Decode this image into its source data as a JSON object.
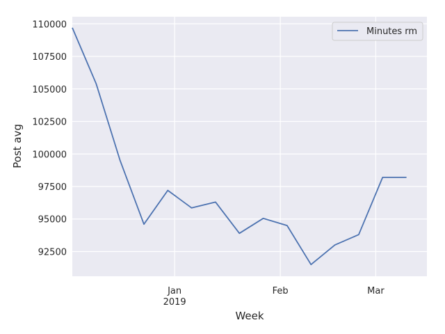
{
  "chart_data": {
    "type": "line",
    "xlabel": "Week",
    "ylabel": "Post avg",
    "x_ticks": [
      {
        "date": "2019-01-01",
        "label": "Jan",
        "sublabel": "2019"
      },
      {
        "date": "2019-02-01",
        "label": "Feb",
        "sublabel": ""
      },
      {
        "date": "2019-03-01",
        "label": "Mar",
        "sublabel": ""
      }
    ],
    "y_ticks": [
      92500,
      95000,
      97500,
      100000,
      102500,
      105000,
      107500,
      110000
    ],
    "xlim": [
      "2018-12-02",
      "2019-03-16"
    ],
    "ylim": [
      90600,
      110550
    ],
    "grid": true,
    "legend": "top-right",
    "colors": {
      "background": "#eaeaf2",
      "grid": "#ffffff",
      "series": "#4c72b0"
    },
    "series": [
      {
        "name": "Minutes rm",
        "x": [
          "2018-12-02",
          "2018-12-09",
          "2018-12-16",
          "2018-12-23",
          "2018-12-30",
          "2019-01-06",
          "2019-01-13",
          "2019-01-20",
          "2019-01-27",
          "2019-02-03",
          "2019-02-10",
          "2019-02-17",
          "2019-02-24",
          "2019-03-03",
          "2019-03-10"
        ],
        "values": [
          109700,
          105400,
          99500,
          94600,
          97200,
          95850,
          96300,
          93900,
          95050,
          94500,
          91500,
          93000,
          93800,
          98200,
          98200
        ]
      }
    ]
  }
}
